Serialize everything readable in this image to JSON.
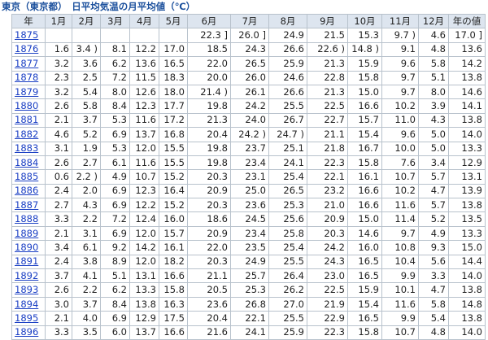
{
  "title": "東京（東京都）　日平均気温の月平均値（℃）",
  "table": {
    "header": [
      "年",
      "1月",
      "2月",
      "3月",
      "4月",
      "5月",
      "6月",
      "7月",
      "8月",
      "9月",
      "10月",
      "11月",
      "12月",
      "年の値"
    ],
    "rows": [
      [
        "1875",
        null,
        null,
        null,
        null,
        null,
        "22.3 ]",
        "26.0 ]",
        "24.9",
        "21.5",
        "15.3",
        "9.7 )",
        "4.6",
        "17.0 ]"
      ],
      [
        "1876",
        "1.6",
        "3.4 )",
        "8.1",
        "12.2",
        "17.0",
        "18.5",
        "24.3",
        "26.6",
        "22.6 )",
        "14.8 )",
        "9.1",
        "4.8",
        "13.6"
      ],
      [
        "1877",
        "3.2",
        "3.6",
        "6.2",
        "13.6",
        "16.5",
        "22.0",
        "26.5",
        "25.9",
        "21.3",
        "15.9",
        "9.6",
        "5.8",
        "14.2"
      ],
      [
        "1878",
        "2.3",
        "2.5",
        "7.2",
        "11.5",
        "18.3",
        "20.0",
        "26.0",
        "24.6",
        "22.8",
        "15.8",
        "9.7",
        "5.1",
        "13.8"
      ],
      [
        "1879",
        "3.2",
        "5.4",
        "8.0",
        "12.6",
        "18.0",
        "21.4 )",
        "26.1",
        "26.6",
        "21.3",
        "15.0",
        "9.7",
        "8.0",
        "14.6"
      ],
      [
        "1880",
        "2.6",
        "5.8",
        "8.4",
        "12.3",
        "17.7",
        "19.8",
        "24.2",
        "25.5",
        "22.5",
        "16.6",
        "10.2",
        "3.9",
        "14.1"
      ],
      [
        "1881",
        "2.1",
        "3.7",
        "5.3",
        "11.6",
        "17.2",
        "21.3",
        "24.0",
        "26.7",
        "22.7",
        "15.7",
        "11.0",
        "4.3",
        "13.8"
      ],
      [
        "1882",
        "4.6",
        "5.2",
        "6.9",
        "13.7",
        "16.8",
        "20.4",
        "24.2 )",
        "24.7 )",
        "21.1",
        "15.4",
        "9.6",
        "5.0",
        "14.0"
      ],
      [
        "1883",
        "3.1",
        "1.9",
        "5.3",
        "12.0",
        "15.5",
        "19.8",
        "23.7",
        "25.1",
        "21.8",
        "16.7",
        "10.0",
        "5.0",
        "13.3"
      ],
      [
        "1884",
        "2.6",
        "2.7",
        "6.1",
        "11.6",
        "15.5",
        "19.8",
        "23.4",
        "24.1",
        "22.3",
        "15.8",
        "7.6",
        "3.4",
        "12.9"
      ],
      [
        "1885",
        "0.6",
        "2.2 )",
        "4.9",
        "10.7",
        "15.2",
        "20.3",
        "23.1",
        "25.4",
        "22.1",
        "16.1",
        "10.7",
        "5.7",
        "13.1"
      ],
      [
        "1886",
        "2.4",
        "2.0",
        "6.9",
        "12.3",
        "16.4",
        "20.9",
        "25.0",
        "26.5",
        "23.2",
        "16.6",
        "10.2",
        "4.7",
        "13.9"
      ],
      [
        "1887",
        "2.7",
        "4.3",
        "6.9",
        "12.2",
        "15.2",
        "20.3",
        "23.6",
        "25.3",
        "21.0",
        "16.6",
        "11.6",
        "5.7",
        "13.8"
      ],
      [
        "1888",
        "3.3",
        "2.2",
        "7.2",
        "12.4",
        "16.0",
        "18.6",
        "24.5",
        "25.6",
        "20.9",
        "15.0",
        "11.4",
        "5.2",
        "13.5"
      ],
      [
        "1889",
        "2.1",
        "3.1",
        "6.9",
        "12.0",
        "15.7",
        "20.9",
        "23.4",
        "25.8",
        "20.3",
        "14.6",
        "9.7",
        "4.9",
        "13.3"
      ],
      [
        "1890",
        "3.4",
        "6.1",
        "9.2",
        "14.2",
        "16.1",
        "22.0",
        "23.5",
        "25.4",
        "24.2",
        "16.0",
        "10.8",
        "9.3",
        "15.0"
      ],
      [
        "1891",
        "2.4",
        "3.8",
        "8.9",
        "12.0",
        "18.2",
        "20.3",
        "24.9",
        "25.5",
        "24.3",
        "16.5",
        "10.4",
        "5.6",
        "14.4"
      ],
      [
        "1892",
        "3.7",
        "4.1",
        "5.1",
        "13.1",
        "16.6",
        "21.1",
        "25.7",
        "26.4",
        "23.0",
        "16.5",
        "9.9",
        "3.3",
        "14.0"
      ],
      [
        "1893",
        "2.6",
        "2.2",
        "6.2",
        "13.3",
        "15.8",
        "20.5",
        "25.3",
        "26.2",
        "22.5",
        "15.9",
        "10.1",
        "4.7",
        "13.8"
      ],
      [
        "1894",
        "3.0",
        "3.7",
        "8.4",
        "13.8",
        "16.3",
        "23.6",
        "26.8",
        "27.0",
        "21.9",
        "15.4",
        "11.6",
        "5.8",
        "14.8"
      ],
      [
        "1895",
        "2.1",
        "4.0",
        "6.9",
        "12.9",
        "17.5",
        "20.4",
        "22.1",
        "25.5",
        "22.9",
        "16.5",
        "9.9",
        "5.4",
        "13.8"
      ],
      [
        "1896",
        "3.3",
        "3.5",
        "6.0",
        "13.7",
        "16.6",
        "21.6",
        "24.1",
        "25.9",
        "22.3",
        "15.8",
        "10.7",
        "4.8",
        "14.0"
      ]
    ]
  }
}
